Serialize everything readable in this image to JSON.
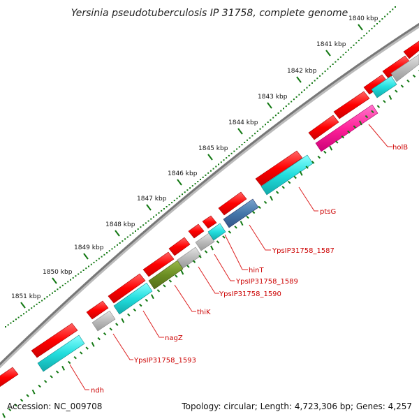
{
  "title": "Yersinia pseudotuberculosis IP 31758, complete genome",
  "accession_text": "Accession: NC_009708",
  "topology_text": "Topology: circular; Length: 4,723,306 bp; Genes: 4,257",
  "scale_labels": [
    "1840 kbp",
    "1841 kbp",
    "1842 kbp",
    "1843 kbp",
    "1844 kbp",
    "1845 kbp",
    "1846 kbp",
    "1847 kbp",
    "1848 kbp",
    "1849 kbp",
    "1850 kbp",
    "1851 kbp"
  ],
  "gene_labels": [
    "holB",
    "ptsG",
    "YpsIP31758_1587",
    "hinT",
    "YpsIP31758_1589",
    "YpsIP31758_1590",
    "thiK",
    "nagZ",
    "YpsIP31758_1593",
    "ndh"
  ],
  "colors": {
    "forward_gene": "#ff0000",
    "reverse_cyan": "#22dddd",
    "magenta": "#ff2299",
    "steel_blue": "#4477aa",
    "olive": "#6b8e23",
    "gray_gene": "#bbbbbb",
    "backbone": "#777777",
    "ticks": "#117711",
    "label_line": "#dd2222"
  }
}
